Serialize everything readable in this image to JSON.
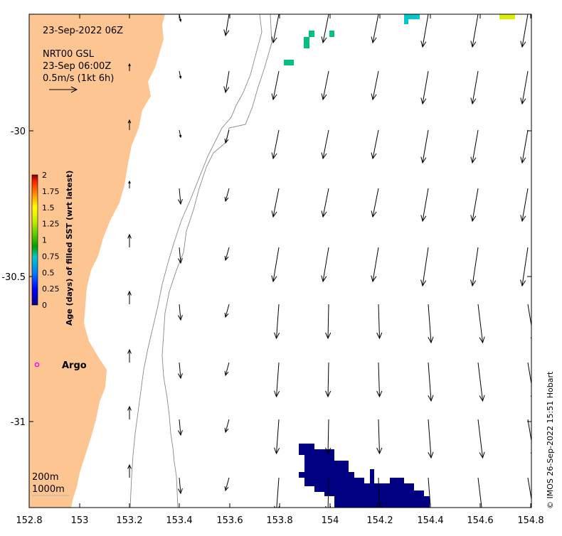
{
  "map": {
    "date_title": "23-Sep-2022 06Z",
    "product_line1": "NRT00 GSL",
    "product_line2": "23-Sep 06:00Z",
    "scale_label": "0.5m/s (1kt 6h)",
    "argo_label": "Argo",
    "contour_200": "200m",
    "contour_1000": "1000m",
    "copyright": "© IMOS 26-Sep-2022 15:51 Hobart",
    "x_ticks": [
      "152.8",
      "153",
      "153.2",
      "153.4",
      "153.6",
      "153.8",
      "154",
      "154.2",
      "154.4",
      "154.6",
      "154.8"
    ],
    "y_ticks": [
      "-30",
      "-30.5",
      "-31"
    ],
    "land_color": "#fdc591",
    "argo_color": "#ff00ff"
  },
  "colorbar": {
    "label": "Age (days) of filled SST (wrt latest)",
    "ticks": [
      "2",
      "1.75",
      "1.5",
      "1.25",
      "1",
      "0.75",
      "0.5",
      "0.25",
      "0"
    ]
  }
}
